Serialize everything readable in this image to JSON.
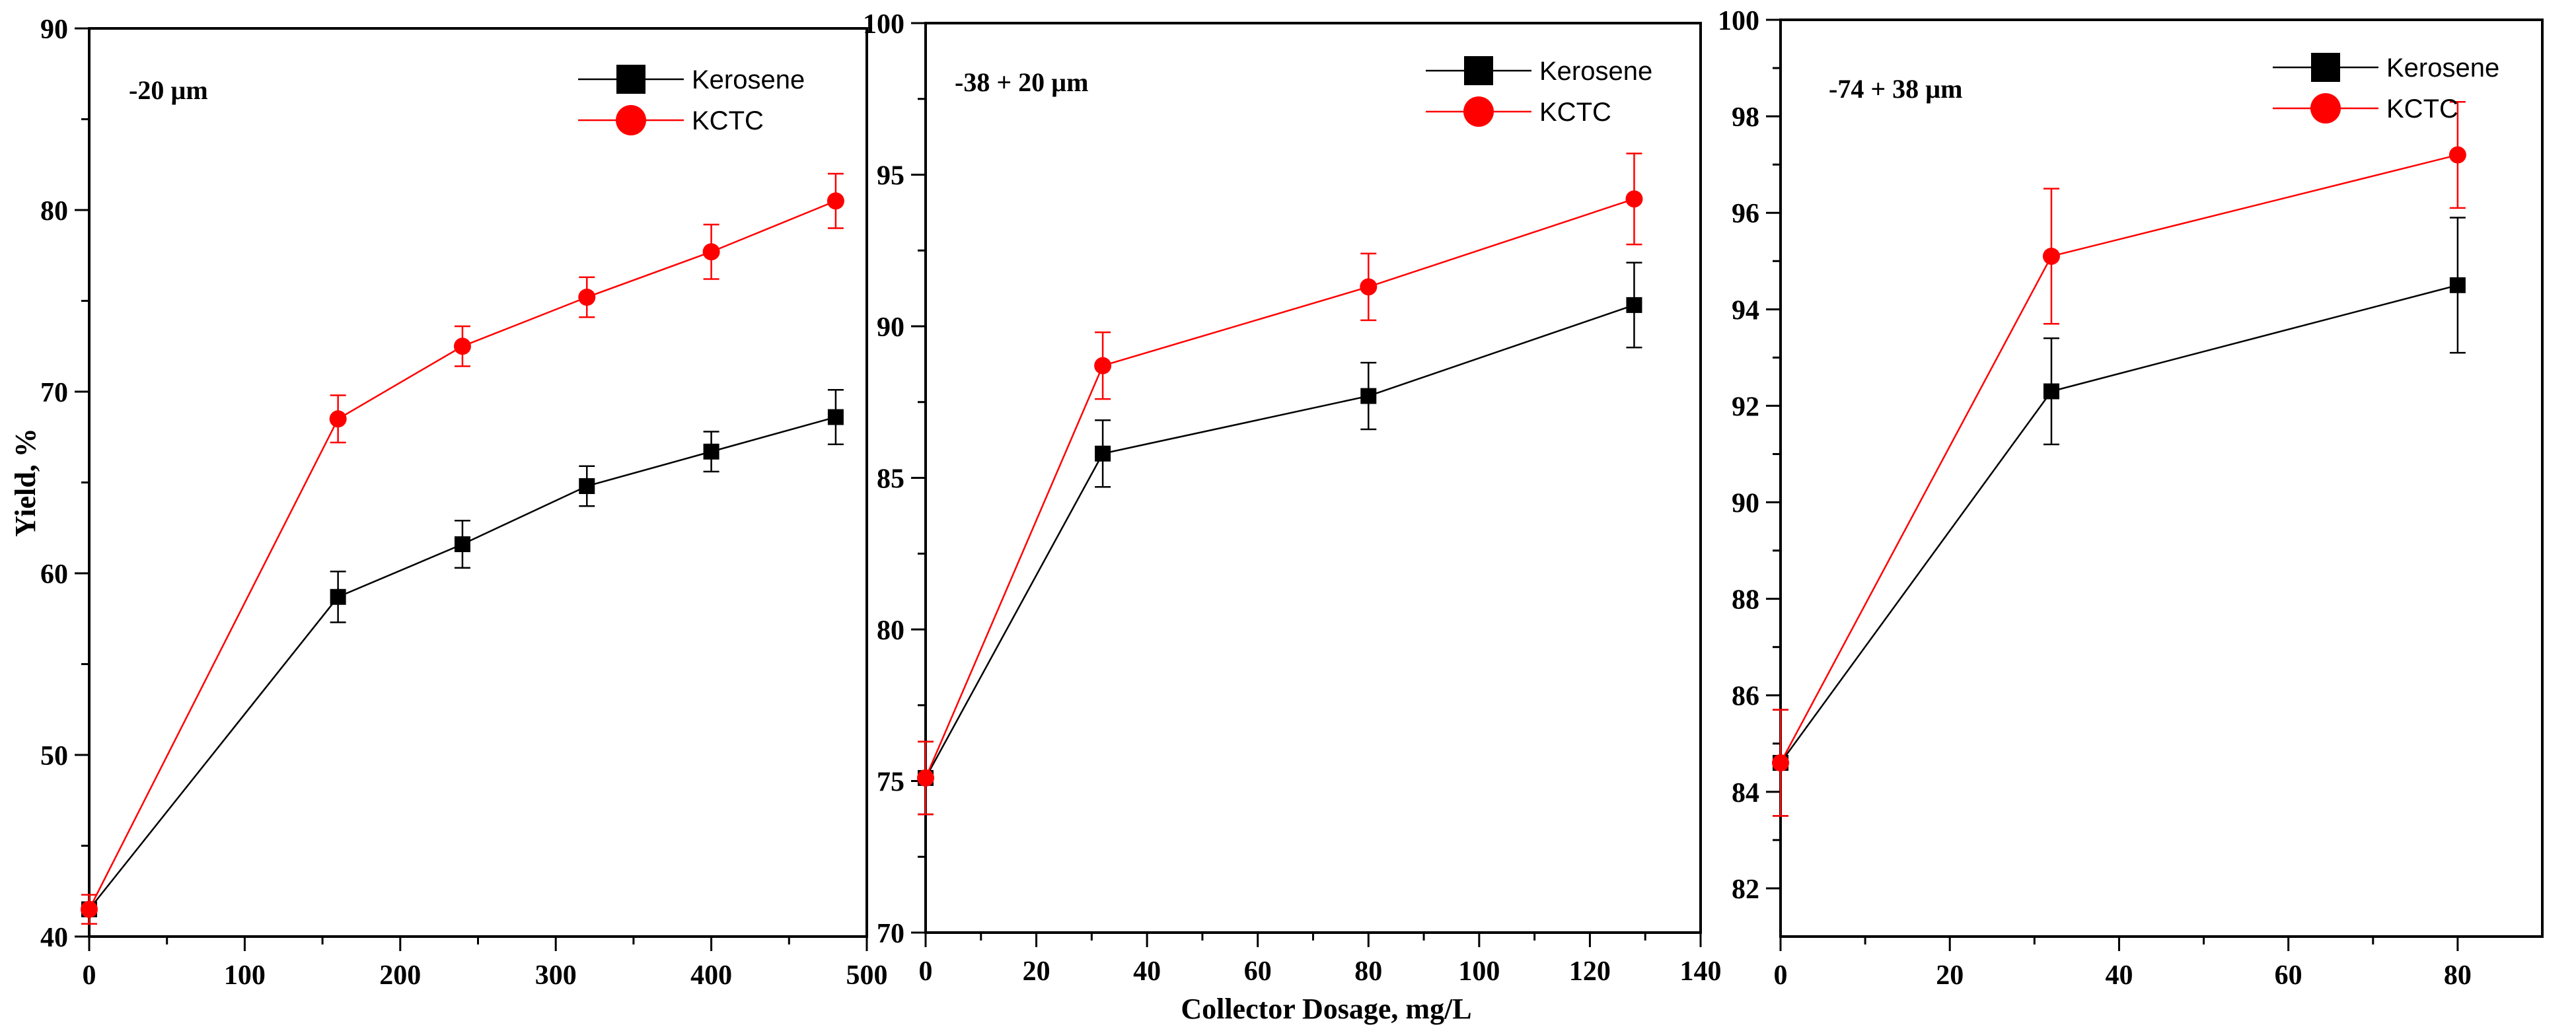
{
  "chart_data": [
    {
      "type": "line",
      "panel_label": "-20 µm",
      "ylabel": "Yield, %",
      "xlabel": "",
      "xlim": [
        0,
        500
      ],
      "ylim": [
        40,
        90
      ],
      "xticks": [
        0,
        100,
        200,
        300,
        400,
        500
      ],
      "yticks": [
        40,
        50,
        60,
        70,
        80,
        90
      ],
      "legend_position": "top-right",
      "series": [
        {
          "name": "Kerosene",
          "color": "#000000",
          "marker": "square",
          "x": [
            0,
            160,
            240,
            320,
            400,
            480
          ],
          "y": [
            41.5,
            58.7,
            61.6,
            64.8,
            66.7,
            68.6
          ],
          "err": [
            0.8,
            1.4,
            1.3,
            1.1,
            1.1,
            1.5
          ]
        },
        {
          "name": "KCTC",
          "color": "#ff0000",
          "marker": "circle",
          "x": [
            0,
            160,
            240,
            320,
            400,
            480
          ],
          "y": [
            41.5,
            68.5,
            72.5,
            75.2,
            77.7,
            80.5
          ],
          "err": [
            0.8,
            1.3,
            1.1,
            1.1,
            1.5,
            1.5
          ]
        }
      ]
    },
    {
      "type": "line",
      "panel_label": "-38 + 20 µm",
      "ylabel": "",
      "xlabel": "Collector Dosage, mg/L",
      "xlim": [
        0,
        140
      ],
      "ylim": [
        70,
        100
      ],
      "xticks": [
        0,
        20,
        40,
        60,
        80,
        100,
        120,
        140
      ],
      "yticks": [
        70,
        75,
        80,
        85,
        90,
        95,
        100
      ],
      "legend_position": "top-right",
      "series": [
        {
          "name": "Kerosene",
          "color": "#000000",
          "marker": "square",
          "x": [
            0,
            32,
            80,
            128
          ],
          "y": [
            75.1,
            85.8,
            87.7,
            90.7
          ],
          "err": [
            1.2,
            1.1,
            1.1,
            1.4
          ]
        },
        {
          "name": "KCTC",
          "color": "#ff0000",
          "marker": "circle",
          "x": [
            0,
            32,
            80,
            128
          ],
          "y": [
            75.1,
            88.7,
            91.3,
            94.2
          ],
          "err": [
            1.2,
            1.1,
            1.1,
            1.5
          ]
        }
      ]
    },
    {
      "type": "line",
      "panel_label": "-74 + 38 µm",
      "ylabel": "",
      "xlabel": "",
      "xlim": [
        0,
        90
      ],
      "ylim": [
        81,
        100
      ],
      "xticks": [
        0,
        20,
        40,
        60,
        80
      ],
      "yticks": [
        82,
        84,
        86,
        88,
        90,
        92,
        94,
        96,
        98,
        100
      ],
      "legend_position": "top-right",
      "series": [
        {
          "name": "Kerosene",
          "color": "#000000",
          "marker": "square",
          "x": [
            0,
            32,
            80
          ],
          "y": [
            84.6,
            92.3,
            94.5
          ],
          "err": [
            1.1,
            1.1,
            1.4
          ]
        },
        {
          "name": "KCTC",
          "color": "#ff0000",
          "marker": "circle",
          "x": [
            0,
            32,
            80
          ],
          "y": [
            84.6,
            95.1,
            97.2
          ],
          "err": [
            1.1,
            1.4,
            1.1
          ]
        }
      ]
    }
  ]
}
